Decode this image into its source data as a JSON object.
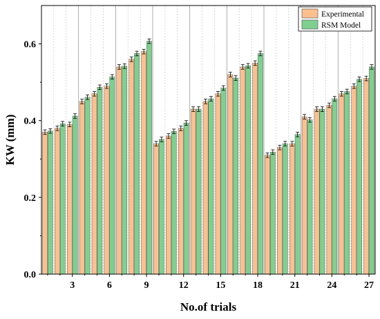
{
  "chart_data": {
    "type": "bar",
    "xlabel": "No.of trials",
    "ylabel": "KW (mm)",
    "ylim": [
      0,
      0.7
    ],
    "yticks": [
      0.0,
      0.2,
      0.4,
      0.6
    ],
    "ytick_labels": [
      "0.0",
      "0.2",
      "0.4",
      "0.6"
    ],
    "categories": [
      1,
      2,
      3,
      4,
      5,
      6,
      7,
      8,
      9,
      10,
      11,
      12,
      13,
      14,
      15,
      16,
      17,
      18,
      19,
      20,
      21,
      22,
      23,
      24,
      25,
      26,
      27
    ],
    "xtick_labels": [
      "3",
      "6",
      "9",
      "12",
      "15",
      "18",
      "21",
      "24",
      "27"
    ],
    "series": [
      {
        "name": "Experimental",
        "color": "#fbc08f",
        "values": [
          0.37,
          0.38,
          0.39,
          0.45,
          0.47,
          0.49,
          0.54,
          0.56,
          0.58,
          0.34,
          0.36,
          0.38,
          0.43,
          0.45,
          0.47,
          0.52,
          0.54,
          0.55,
          0.31,
          0.33,
          0.34,
          0.41,
          0.43,
          0.44,
          0.47,
          0.49,
          0.51
        ]
      },
      {
        "name": "RSM Model",
        "color": "#7fd08f",
        "values": [
          0.373,
          0.392,
          0.412,
          0.461,
          0.487,
          0.514,
          0.542,
          0.575,
          0.607,
          0.351,
          0.372,
          0.394,
          0.43,
          0.457,
          0.485,
          0.511,
          0.543,
          0.575,
          0.318,
          0.34,
          0.364,
          0.402,
          0.43,
          0.457,
          0.476,
          0.508,
          0.54
        ]
      }
    ],
    "error_bars": true,
    "grid": "dashed vertical dividers between trials",
    "legend_position": "top-right"
  }
}
